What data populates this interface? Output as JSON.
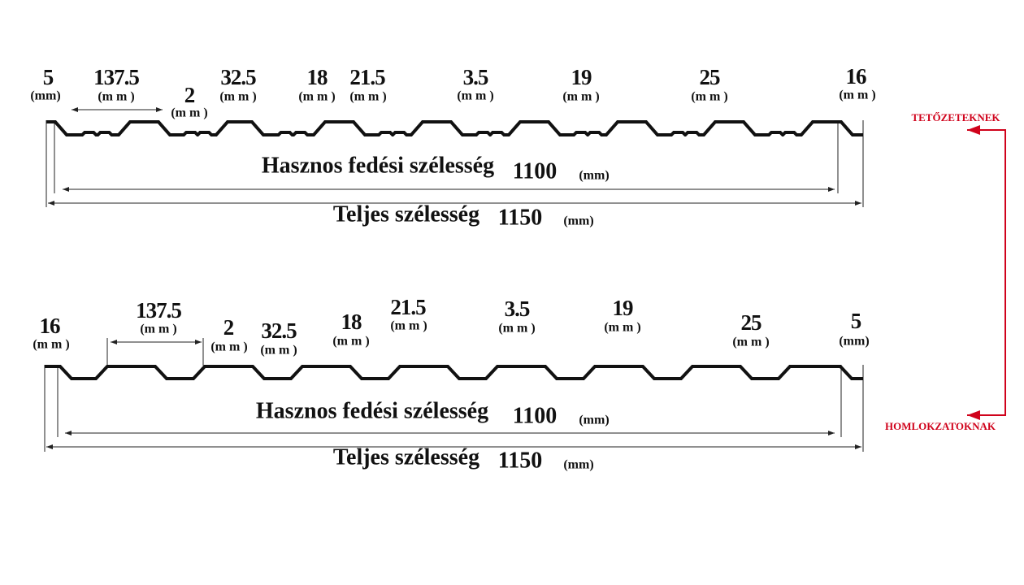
{
  "profiles": [
    {
      "dimensions": [
        {
          "value": "5",
          "unit": "(mm)"
        },
        {
          "value": "137.5",
          "unit": "(m m )"
        },
        {
          "value": "2",
          "unit": "(m m )"
        },
        {
          "value": "32.5",
          "unit": "(m m )"
        },
        {
          "value": "18",
          "unit": "(m m )"
        },
        {
          "value": "21.5",
          "unit": "(m m )"
        },
        {
          "value": "3.5",
          "unit": "(m m )"
        },
        {
          "value": "19",
          "unit": "(m m )"
        },
        {
          "value": "25",
          "unit": "(m m )"
        },
        {
          "value": "16",
          "unit": "(m m )"
        }
      ],
      "useful_width": {
        "label": "Hasznos fedési szélesség",
        "value": "1100",
        "unit": "(mm)"
      },
      "total_width": {
        "label": "Teljes szélesség",
        "value": "1150",
        "unit": "(mm)"
      }
    },
    {
      "dimensions": [
        {
          "value": "16",
          "unit": "(m m )"
        },
        {
          "value": "137.5",
          "unit": "(m m )"
        },
        {
          "value": "2",
          "unit": "(m m )"
        },
        {
          "value": "32.5",
          "unit": "(m m )"
        },
        {
          "value": "18",
          "unit": "(m m )"
        },
        {
          "value": "21.5",
          "unit": "(m m )"
        },
        {
          "value": "3.5",
          "unit": "(m m )"
        },
        {
          "value": "19",
          "unit": "(m m )"
        },
        {
          "value": "25",
          "unit": "(m m )"
        },
        {
          "value": "5",
          "unit": "(mm)"
        }
      ],
      "useful_width": {
        "label": "Hasznos fedési szélesség",
        "value": "1100",
        "unit": "(mm)"
      },
      "total_width": {
        "label": "Teljes szélesség",
        "value": "1150",
        "unit": "(mm)"
      }
    }
  ],
  "side_labels": [
    "TETŐZETEKNEK",
    "HOMLOKZATOKNAK"
  ]
}
